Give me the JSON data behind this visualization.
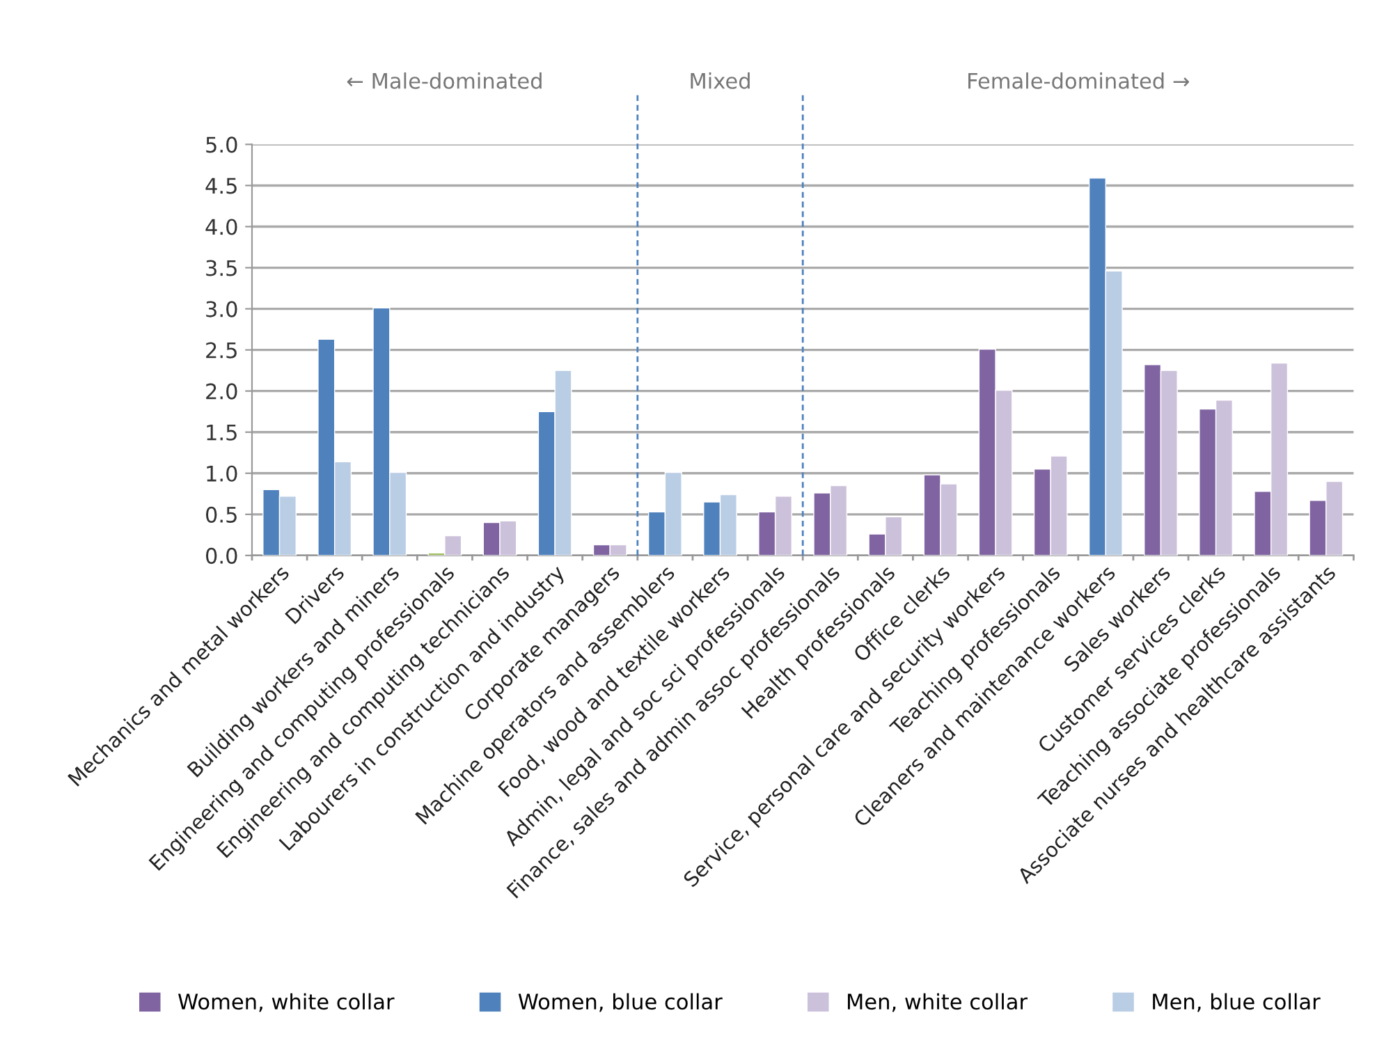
{
  "chart_data": {
    "type": "bar",
    "categories": [
      "Mechanics and metal workers",
      "Drivers",
      "Building workers and miners",
      "Engineering and computing professionals",
      "Engineering and computing technicians",
      "Labourers in construction and industry",
      "Corporate managers",
      "Machine operators and assemblers",
      "Food, wood and textile workers",
      "Admin, legal and soc sci professionals",
      "Finance, sales and admin assoc professionals",
      "Health professionals",
      "Office clerks",
      "Service, personal care and security workers",
      "Teaching professionals",
      "Cleaners and maintenance workers",
      "Sales workers",
      "Customer services clerks",
      "Teaching associate professionals",
      "Associate nurses and healthcare assistants"
    ],
    "series": [
      {
        "name": "Women, white collar",
        "color": "#8064a2",
        "colors": [
          "#8064a2",
          "#8064a2",
          "#8064a2",
          "#9bbb59",
          "#8064a2",
          "#8064a2",
          "#8064a2",
          "#8064a2",
          "#8064a2",
          "#8064a2",
          "#8064a2",
          "#8064a2",
          "#8064a2",
          "#8064a2",
          "#8064a2",
          "#8064a2",
          "#8064a2",
          "#8064a2",
          "#8064a2",
          "#8064a2"
        ],
        "values": [
          null,
          null,
          null,
          0.03,
          0.4,
          null,
          0.13,
          null,
          null,
          0.53,
          0.76,
          0.26,
          0.98,
          2.51,
          1.05,
          null,
          2.32,
          1.78,
          0.78,
          0.67
        ]
      },
      {
        "name": "Women, blue collar",
        "color": "#4f81bd",
        "values": [
          0.8,
          2.63,
          3.01,
          null,
          null,
          1.75,
          null,
          0.53,
          0.65,
          null,
          null,
          null,
          null,
          null,
          null,
          4.59,
          null,
          null,
          null,
          null
        ]
      },
      {
        "name": "Men, white collar",
        "color": "#ccc1da",
        "values": [
          null,
          null,
          null,
          0.24,
          0.42,
          null,
          0.13,
          null,
          null,
          0.72,
          0.85,
          0.47,
          0.87,
          2.01,
          1.21,
          null,
          2.25,
          1.89,
          2.34,
          0.9
        ]
      },
      {
        "name": "Men, blue collar",
        "color": "#b9cde5",
        "values": [
          0.72,
          1.14,
          1.01,
          null,
          null,
          2.25,
          null,
          1.01,
          0.74,
          null,
          null,
          null,
          null,
          null,
          null,
          3.46,
          null,
          null,
          null,
          null
        ]
      }
    ],
    "ylim": [
      0,
      5
    ],
    "yticks": [
      {
        "value": 0,
        "label": "0.0"
      },
      {
        "value": 0.5,
        "label": "0.5"
      },
      {
        "value": 1,
        "label": "1.0"
      },
      {
        "value": 1.5,
        "label": "1.5"
      },
      {
        "value": 2,
        "label": "2.0"
      },
      {
        "value": 2.5,
        "label": "2.5"
      },
      {
        "value": 3,
        "label": "3.0"
      },
      {
        "value": 3.5,
        "label": "3.5"
      },
      {
        "value": 4,
        "label": "4.0"
      },
      {
        "value": 4.5,
        "label": "4.5"
      },
      {
        "value": 5,
        "label": "5.0"
      }
    ],
    "grid": "y",
    "legend": "bottom",
    "annotations": [
      "← Male-dominated",
      "Mixed",
      "Female-dominated →"
    ]
  }
}
